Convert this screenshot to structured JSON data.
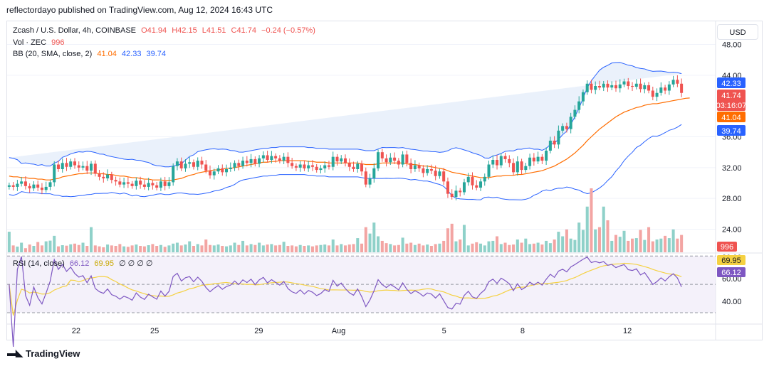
{
  "caption": "reflectordayo published on TradingView.com, Aug 12, 2024 16:43 UTC",
  "brand": "TradingView",
  "currency_button": "USD",
  "legend": {
    "symbol": "Zcash / U.S. Dollar, 4h, COINBASE",
    "open": "O41.94",
    "high": "H42.15",
    "low": "L41.51",
    "close": "C41.74",
    "change": "−0.24 (−0.57%)",
    "vol_label": "Vol · ZEC",
    "vol_value": "996",
    "bb_label": "BB (20, SMA, close, 2)",
    "bb_basis": "41.04",
    "bb_upper": "42.33",
    "bb_lower": "39.74",
    "rsi_label": "RSI (14, close)",
    "rsi_value": "66.12",
    "rsi_ma": "69.95",
    "rsi_extra": "∅ ∅ ∅ ∅"
  },
  "colors": {
    "up": "#26a69a",
    "down": "#ef5350",
    "vol_up": "#8fd1c9",
    "vol_down": "#f3a5a3",
    "bb_basis": "#ff6d00",
    "bb_band": "#2962ff",
    "bb_fill": "#eaf1fb",
    "rsi": "#7e57c2",
    "rsi_ma": "#f5d142",
    "rsi_fill": "#ede7f6"
  },
  "chart_data": [
    {
      "type": "candlestick",
      "title": "Zcash / U.S. Dollar, 4h, COINBASE",
      "ylim": [
        21,
        51
      ],
      "y_ticks": [
        "48.00",
        "44.00",
        "36.00",
        "32.00",
        "28.00",
        "24.00"
      ],
      "x_ticks": [
        "22",
        "25",
        "29",
        "Aug",
        "5",
        "8",
        "12"
      ],
      "price_labels": [
        {
          "value": 42.33,
          "label": "42.33",
          "color": "#2962ff"
        },
        {
          "value": 41.74,
          "label": "41.74",
          "sub": "03:16:07",
          "color": "#ef5350"
        },
        {
          "value": 41.04,
          "label": "41.04",
          "color": "#ff6d00"
        },
        {
          "value": 39.74,
          "label": "39.74",
          "color": "#2962ff"
        }
      ],
      "volume_label": "996",
      "closes": [
        29.7,
        29.5,
        29.9,
        30.2,
        29.6,
        29.3,
        29.8,
        29.4,
        29.1,
        29.5,
        30.1,
        32.4,
        31.8,
        32.6,
        32.1,
        32.8,
        32.3,
        32.0,
        32.2,
        31.6,
        32.5,
        31.2,
        30.8,
        30.6,
        31.1,
        30.4,
        30.2,
        29.8,
        30.1,
        29.9,
        29.6,
        30.3,
        29.8,
        29.5,
        30.0,
        29.7,
        29.4,
        30.2,
        29.6,
        30.1,
        32.2,
        32.8,
        31.9,
        32.5,
        32.7,
        32.1,
        32.9,
        32.4,
        31.6,
        31.0,
        31.5,
        31.9,
        31.4,
        31.8,
        32.0,
        32.6,
        32.2,
        32.9,
        32.6,
        33.1,
        32.5,
        33.2,
        33.6,
        33.0,
        33.5,
        33.2,
        32.9,
        33.4,
        32.6,
        32.2,
        32.0,
        32.4,
        31.9,
        32.3,
        32.1,
        31.7,
        31.9,
        32.3,
        32.1,
        33.4,
        32.8,
        33.2,
        32.6,
        32.1,
        31.8,
        32.5,
        31.5,
        29.8,
        30.6,
        31.9,
        34.0,
        33.2,
        32.7,
        33.3,
        32.9,
        32.4,
        33.7,
        32.6,
        31.8,
        32.3,
        31.9,
        31.3,
        31.8,
        31.6,
        30.9,
        31.5,
        30.2,
        28.6,
        28.2,
        29.0,
        28.8,
        30.1,
        30.8,
        29.7,
        29.4,
        30.2,
        30.8,
        32.4,
        33.0,
        32.3,
        33.5,
        33.1,
        32.6,
        31.4,
        32.8,
        31.7,
        32.2,
        33.3,
        32.8,
        33.4,
        32.9,
        34.2,
        35.5,
        35.0,
        36.8,
        37.4,
        37.0,
        38.6,
        39.5,
        40.6,
        41.8,
        42.9,
        42.1,
        42.6,
        42.4,
        42.9,
        42.4,
        42.7,
        42.3,
        42.8,
        43.2,
        42.6,
        42.5,
        42.9,
        42.2,
        42.7,
        42.0,
        41.2,
        41.7,
        42.4,
        42.0,
        42.8,
        43.4,
        42.9,
        41.7
      ],
      "volumes": [
        900,
        300,
        250,
        420,
        180,
        340,
        280,
        450,
        300,
        480,
        510,
        720,
        260,
        310,
        290,
        350,
        380,
        320,
        420,
        280,
        1100,
        300,
        260,
        220,
        340,
        300,
        280,
        360,
        260,
        240,
        300,
        340,
        280,
        260,
        310,
        360,
        280,
        320,
        240,
        300,
        380,
        420,
        300,
        340,
        480,
        280,
        360,
        300,
        560,
        320,
        300,
        340,
        280,
        260,
        300,
        420,
        320,
        500,
        300,
        360,
        320,
        420,
        300,
        340,
        360,
        300,
        320,
        460,
        280,
        300,
        260,
        320,
        280,
        300,
        260,
        300,
        320,
        340,
        300,
        560,
        300,
        360,
        300,
        340,
        360,
        620,
        380,
        1100,
        820,
        1300,
        700,
        500,
        400,
        360,
        300,
        320,
        640,
        380,
        420,
        320,
        380,
        300,
        340,
        280,
        360,
        380,
        500,
        1050,
        1250,
        480,
        560,
        1200,
        300,
        380,
        440,
        380,
        300,
        480,
        500,
        700,
        360,
        420,
        320,
        340,
        560,
        420,
        600,
        360,
        380,
        420,
        340,
        500,
        400,
        560,
        900,
        700,
        1000,
        600,
        540,
        1300,
        980,
        2000,
        2800,
        1000,
        1100,
        2000,
        1400,
        500,
        760,
        680,
        940,
        500,
        600,
        620,
        980,
        540,
        1100,
        480,
        560,
        600,
        720,
        620,
        1000,
        600,
        760,
        300,
        400,
        620,
        460,
        700,
        120
      ],
      "bb_basis": [
        30.9,
        30.8,
        30.8,
        30.7,
        30.7,
        30.6,
        30.6,
        30.5,
        30.5,
        30.4,
        30.4,
        30.5,
        30.6,
        30.8,
        30.9,
        31.0,
        31.1,
        31.2,
        31.2,
        31.3,
        31.3,
        31.3,
        31.2,
        31.2,
        31.1,
        31.1,
        31.0,
        30.9,
        30.9,
        30.8,
        30.7,
        30.7,
        30.6,
        30.5,
        30.5,
        30.4,
        30.4,
        30.4,
        30.3,
        30.3,
        30.4,
        30.5,
        30.6,
        30.8,
        31.0,
        31.1,
        31.3,
        31.4,
        31.5,
        31.6,
        31.7,
        31.7,
        31.8,
        31.9,
        31.9,
        32.0,
        32.1,
        32.2,
        32.3,
        32.4,
        32.5,
        32.6,
        32.7,
        32.7,
        32.8,
        32.8,
        32.9,
        32.9,
        32.9,
        32.9,
        32.9,
        32.9,
        32.9,
        32.8,
        32.8,
        32.7,
        32.7,
        32.7,
        32.6,
        32.6,
        32.6,
        32.6,
        32.6,
        32.6,
        32.6,
        32.6,
        32.5,
        32.4,
        32.4,
        32.4,
        32.5,
        32.6,
        32.6,
        32.6,
        32.6,
        32.6,
        32.6,
        32.5,
        32.4,
        32.4,
        32.3,
        32.2,
        32.2,
        32.1,
        32.0,
        31.9,
        31.8,
        31.6,
        31.4,
        31.3,
        31.2,
        31.1,
        31.0,
        30.9,
        30.8,
        30.7,
        30.7,
        30.7,
        30.8,
        30.9,
        30.9,
        31.0,
        31.0,
        31.0,
        31.1,
        31.1,
        31.2,
        31.3,
        31.4,
        31.5,
        31.6,
        31.8,
        32.0,
        32.2,
        32.5,
        32.8,
        33.1,
        33.5,
        33.9,
        34.4,
        34.9,
        35.5,
        36.0,
        36.5,
        37.0,
        37.4,
        37.8,
        38.2,
        38.6,
        38.9,
        39.2,
        39.4,
        39.6,
        39.8,
        39.9,
        40.1,
        40.2,
        40.3,
        40.3,
        40.4,
        40.5,
        40.6,
        40.7,
        40.8,
        40.9,
        41.0,
        41.04
      ],
      "rsi_ylim": [
        20,
        82
      ],
      "rsi_ticks": [
        "60.00",
        "40.00"
      ],
      "rsi_labels": [
        {
          "value": 69.95,
          "label": "69.95",
          "color": "#f5d142"
        },
        {
          "value": 66.12,
          "label": "66.12",
          "color": "#7e57c2"
        }
      ],
      "rsi_overbought_label": "80.00"
    }
  ]
}
